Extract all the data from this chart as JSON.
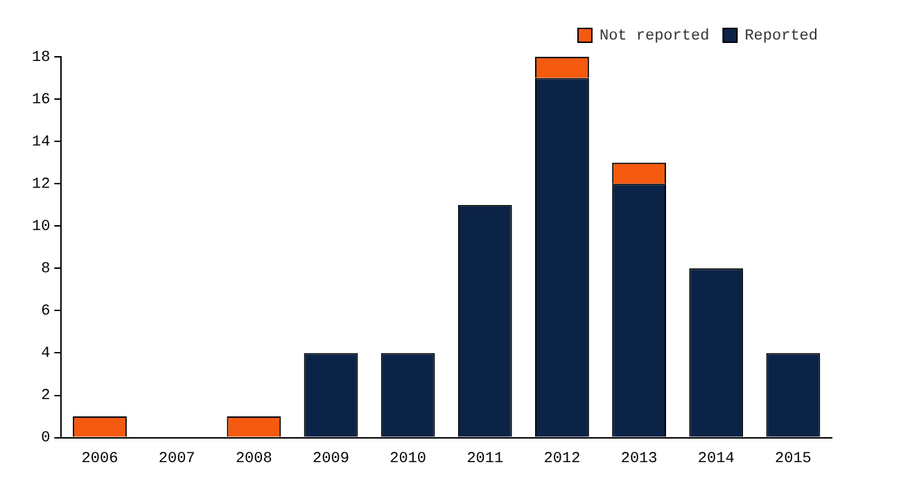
{
  "chart_data": {
    "type": "bar",
    "stacked": true,
    "categories": [
      "2006",
      "2007",
      "2008",
      "2009",
      "2010",
      "2011",
      "2012",
      "2013",
      "2014",
      "2015"
    ],
    "series": [
      {
        "name": "Reported",
        "color": "#0b2346",
        "values": [
          0,
          0,
          0,
          4,
          4,
          11,
          17,
          12,
          8,
          4
        ]
      },
      {
        "name": "Not reported",
        "color": "#f45a10",
        "values": [
          1,
          0,
          1,
          0,
          0,
          0,
          1,
          1,
          0,
          0
        ]
      }
    ],
    "ylim": [
      0,
      18
    ],
    "yticks": [
      0,
      2,
      4,
      6,
      8,
      10,
      12,
      14,
      16,
      18
    ],
    "grid": false,
    "legend": "top right"
  }
}
